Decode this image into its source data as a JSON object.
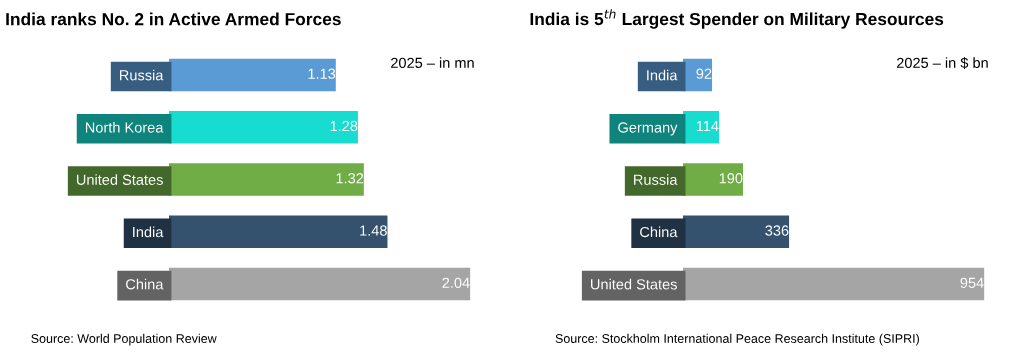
{
  "chart_data": [
    {
      "type": "bar",
      "orientation": "horizontal",
      "title": "India ranks No. 2 in Active Armed Forces",
      "categories": [
        "Russia",
        "North Korea",
        "United States",
        "India",
        "China"
      ],
      "values": [
        1.13,
        1.28,
        1.32,
        1.48,
        2.04
      ],
      "colors": [
        "#5b9bd5",
        "#17dccf",
        "#70ad47",
        "#34526e",
        "#a5a5a5"
      ],
      "data_labels": true,
      "tick_labels": "y",
      "annotations": [
        "2025 – in mn",
        "Source: World Population Review"
      ]
    },
    {
      "type": "bar",
      "orientation": "horizontal",
      "title": "India is 5$^{th}$ Largest Spender on Military Resources",
      "categories": [
        "India",
        "Germany",
        "Russia",
        "China",
        "United States"
      ],
      "values": [
        92,
        114,
        190,
        336,
        954
      ],
      "colors": [
        "#5b9bd5",
        "#17dccf",
        "#70ad47",
        "#34526e",
        "#a5a5a5"
      ],
      "data_labels": true,
      "tick_labels": "y",
      "annotations": [
        "2025 – in $ bn",
        "Source: Stockholm International Peace Research Institute (SIPRI)"
      ]
    }
  ]
}
